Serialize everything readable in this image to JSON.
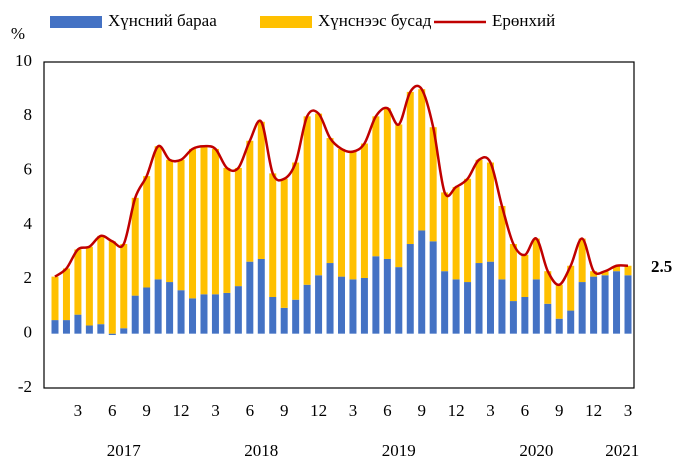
{
  "chart_data": {
    "type": "bar",
    "stacked": true,
    "y_unit_label": "%",
    "annotation": "2.5",
    "categories": [
      null,
      null,
      "3",
      null,
      null,
      "6",
      null,
      null,
      "9",
      null,
      null,
      "12",
      null,
      null,
      "3",
      null,
      null,
      "6",
      null,
      null,
      "9",
      null,
      null,
      "12",
      null,
      null,
      "3",
      null,
      null,
      "6",
      null,
      null,
      "9",
      null,
      null,
      "12",
      null,
      null,
      "3",
      null,
      null,
      "6",
      null,
      null,
      "9",
      null,
      null,
      "12",
      null,
      null,
      "3"
    ],
    "year_labels": [
      "2017",
      "2018",
      "2019",
      "2020",
      "2021"
    ],
    "series": [
      {
        "name": "Хүнсний бараа",
        "color": "#4472c4",
        "values": [
          0.5,
          0.5,
          0.7,
          0.3,
          0.35,
          -0.05,
          0.2,
          1.4,
          1.7,
          2.0,
          1.9,
          1.6,
          1.3,
          1.45,
          1.45,
          1.5,
          1.75,
          2.65,
          2.75,
          1.35,
          0.95,
          1.25,
          1.8,
          2.15,
          2.6,
          2.1,
          2.0,
          2.05,
          2.85,
          2.75,
          2.45,
          3.3,
          3.8,
          3.4,
          2.3,
          2.0,
          1.9,
          2.6,
          2.65,
          2.0,
          1.2,
          1.35,
          2.0,
          1.1,
          0.55,
          0.85,
          1.9,
          2.1,
          2.15,
          2.3,
          2.15
        ]
      },
      {
        "name": "Хүнснээс бусад",
        "color": "#ffc000",
        "values": [
          1.6,
          1.9,
          2.4,
          2.9,
          3.25,
          3.4,
          3.1,
          3.6,
          4.1,
          4.9,
          4.5,
          4.8,
          5.5,
          5.45,
          5.35,
          4.6,
          4.35,
          4.45,
          5.05,
          4.55,
          4.75,
          5.05,
          6.2,
          5.95,
          4.6,
          4.7,
          4.7,
          4.95,
          5.15,
          5.55,
          5.25,
          5.6,
          5.2,
          4.2,
          2.9,
          3.4,
          3.8,
          3.8,
          3.65,
          2.7,
          2.1,
          1.55,
          1.5,
          1.2,
          1.25,
          1.65,
          1.6,
          0.2,
          0.15,
          0.2,
          0.35
        ]
      },
      {
        "name": "Ерөнхий",
        "color": "#c00000",
        "type": "line",
        "values": [
          2.1,
          2.4,
          3.1,
          3.2,
          3.6,
          3.4,
          3.3,
          5.0,
          5.8,
          6.9,
          6.4,
          6.4,
          6.8,
          6.9,
          6.8,
          6.1,
          6.1,
          7.1,
          7.8,
          5.9,
          5.7,
          6.3,
          8.0,
          8.1,
          7.2,
          6.8,
          6.7,
          7.0,
          8.0,
          8.3,
          7.7,
          8.9,
          9.0,
          7.6,
          5.2,
          5.4,
          5.7,
          6.4,
          6.3,
          4.7,
          3.3,
          2.9,
          3.5,
          2.3,
          1.8,
          2.5,
          3.5,
          2.3,
          2.3,
          2.5,
          2.5
        ]
      }
    ],
    "ylim": [
      -2,
      10
    ],
    "yticks": [
      -2,
      0,
      2,
      4,
      6,
      8,
      10
    ],
    "grid": false
  }
}
